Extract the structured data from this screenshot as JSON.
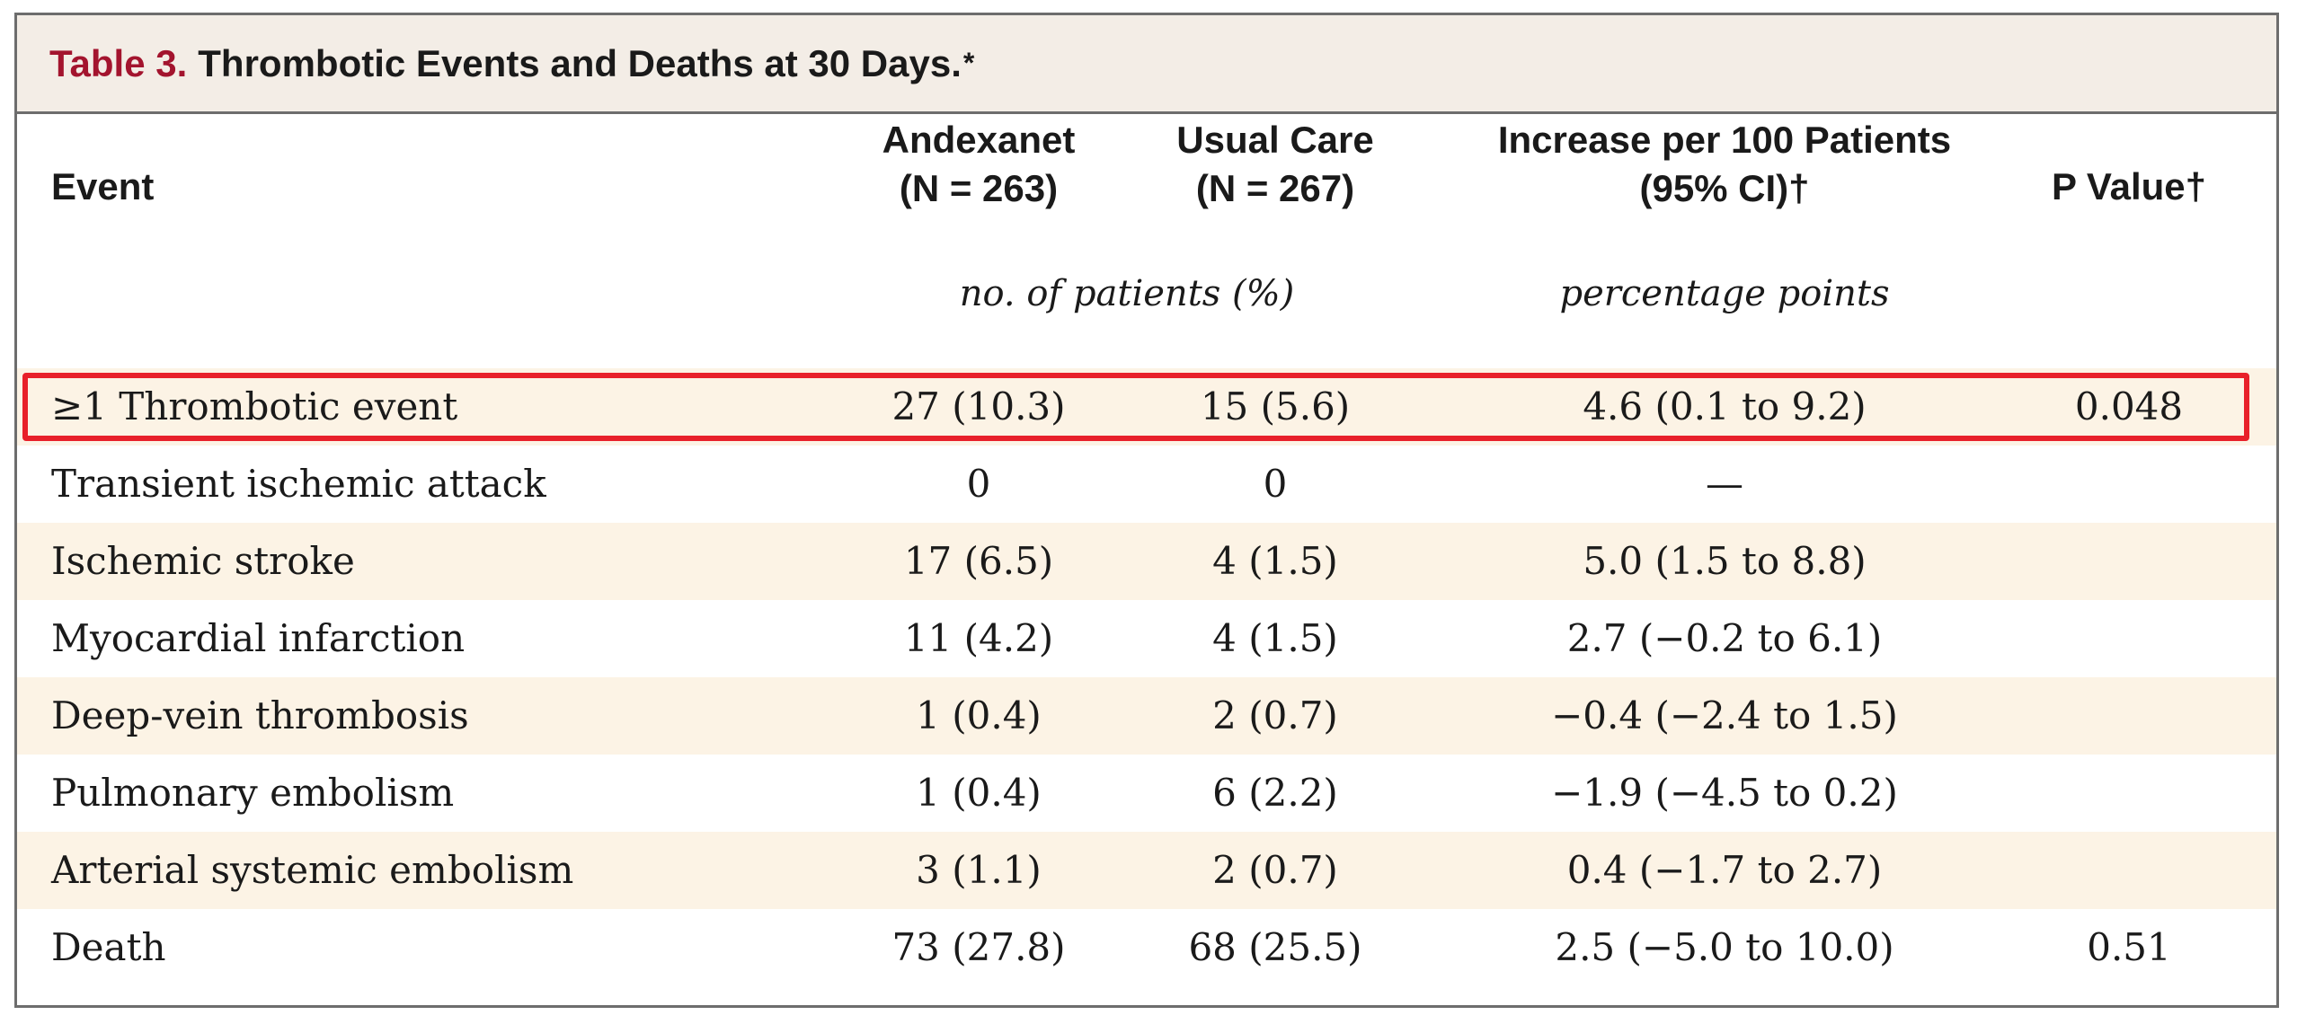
{
  "table": {
    "label": "Table 3.",
    "title": "Thrombotic Events and Deaths at 30 Days.",
    "title_mark": "*",
    "headers": {
      "event": "Event",
      "andexanet_line1": "Andexanet",
      "andexanet_line2": "(N = 263)",
      "usual_line1": "Usual Care",
      "usual_line2": "(N = 267)",
      "increase_line1": "Increase per 100 Patients",
      "increase_line2": "(95% CI)†",
      "pvalue": "P Value†"
    },
    "units": {
      "patients": "no. of patients (%)",
      "points": "percentage points"
    },
    "rows": [
      {
        "event": "≥1 Thrombotic event",
        "andexanet": "27 (10.3)",
        "usual": "15 (5.6)",
        "increase": "4.6 (0.1 to 9.2)",
        "p": "0.048"
      },
      {
        "event": "Transient ischemic attack",
        "andexanet": "0",
        "usual": "0",
        "increase": "—",
        "p": ""
      },
      {
        "event": "Ischemic stroke",
        "andexanet": "17 (6.5)",
        "usual": "4 (1.5)",
        "increase": "5.0 (1.5 to 8.8)",
        "p": ""
      },
      {
        "event": "Myocardial infarction",
        "andexanet": "11 (4.2)",
        "usual": "4 (1.5)",
        "increase": "2.7 (−0.2 to 6.1)",
        "p": ""
      },
      {
        "event": "Deep-vein thrombosis",
        "andexanet": "1 (0.4)",
        "usual": "2 (0.7)",
        "increase": "−0.4 (−2.4 to 1.5)",
        "p": ""
      },
      {
        "event": "Pulmonary embolism",
        "andexanet": "1 (0.4)",
        "usual": "6 (2.2)",
        "increase": "−1.9 (−4.5 to 0.2)",
        "p": ""
      },
      {
        "event": "Arterial systemic embolism",
        "andexanet": "3 (1.1)",
        "usual": "2 (0.7)",
        "increase": "0.4 (−1.7 to 2.7)",
        "p": ""
      },
      {
        "event": "Death",
        "andexanet": "73 (27.8)",
        "usual": "68 (25.5)",
        "increase": "2.5 (−5.0 to 10.0)",
        "p": "0.51"
      }
    ]
  },
  "colors": {
    "title_label": "#a3142e",
    "title_bar_bg": "#f3ede6",
    "row_shade": "#fcf3e5",
    "highlight_border": "#e8202a"
  }
}
